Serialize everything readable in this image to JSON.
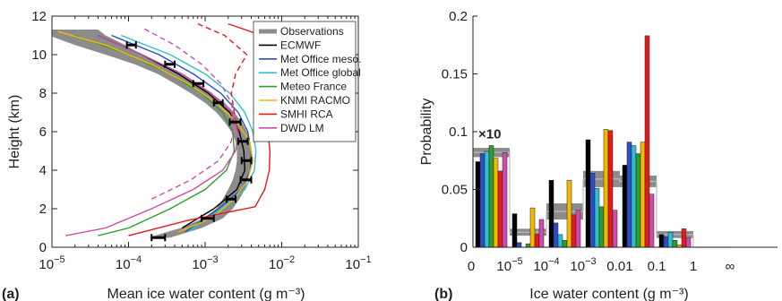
{
  "chart_data": [
    {
      "type": "line",
      "panel_label": "(a)",
      "xlabel": "Mean ice water content (g m⁻³)",
      "ylabel": "Height (km)",
      "xscale": "log",
      "xlim": [
        1e-05,
        0.1
      ],
      "ylim": [
        0,
        12
      ],
      "xticks": [
        {
          "value": 1e-05,
          "base": "10",
          "exp": "−5"
        },
        {
          "value": 0.0001,
          "base": "10",
          "exp": "−4"
        },
        {
          "value": 0.001,
          "base": "10",
          "exp": "−3"
        },
        {
          "value": 0.01,
          "base": "10",
          "exp": "−2"
        },
        {
          "value": 0.1,
          "base": "10",
          "exp": "−1"
        }
      ],
      "yticks": [
        "0",
        "2",
        "4",
        "6",
        "8",
        "10",
        "12"
      ],
      "legend_position": "top-right",
      "observations": {
        "name": "Observations",
        "color": "#8c8c8c",
        "heights": [
          0.5,
          1.0,
          1.5,
          2.0,
          2.5,
          3.0,
          3.5,
          4.0,
          4.5,
          5.0,
          5.5,
          6.0,
          6.5,
          7.0,
          7.5,
          8.0,
          8.5,
          9.0,
          9.5,
          10.0,
          10.5,
          11.0,
          11.3
        ],
        "low": [
          0.00018,
          0.00048,
          0.00095,
          0.0014,
          0.0017,
          0.002,
          0.0023,
          0.0025,
          0.0026,
          0.0026,
          0.0025,
          0.0022,
          0.0018,
          0.0014,
          0.001,
          0.00065,
          0.0004,
          0.00024,
          0.00012,
          5e-05,
          2e-05,
          9e-06,
          8e-06
        ],
        "high": [
          0.00035,
          0.0009,
          0.0017,
          0.0023,
          0.0028,
          0.0033,
          0.0036,
          0.0039,
          0.004,
          0.004,
          0.0038,
          0.0035,
          0.003,
          0.0024,
          0.0018,
          0.0012,
          0.00078,
          0.00048,
          0.00028,
          0.00015,
          9e-05,
          5e-05,
          4e-05
        ]
      },
      "error_bars": {
        "heights": [
          0.5,
          1.5,
          2.5,
          3.5,
          4.5,
          5.5,
          6.5,
          7.5,
          8.5,
          9.5,
          10.5
        ],
        "low": [
          0.0002,
          0.0009,
          0.0019,
          0.0029,
          0.003,
          0.0027,
          0.0021,
          0.0013,
          0.0007,
          0.0003,
          9.5e-05
        ],
        "high": [
          0.0003,
          0.0013,
          0.0025,
          0.004,
          0.004,
          0.0036,
          0.0029,
          0.0017,
          0.00095,
          0.0004,
          0.000125
        ]
      },
      "series": [
        {
          "name": "ECMWF",
          "color": "#000000",
          "dashed": false,
          "points": [
            [
              0.0005,
              1.0
            ],
            [
              0.0013,
              2.0
            ],
            [
              0.0026,
              3.0
            ],
            [
              0.0033,
              4.0
            ],
            [
              0.0032,
              5.0
            ],
            [
              0.0028,
              6.0
            ],
            [
              0.0021,
              7.0
            ],
            [
              0.0011,
              8.0
            ],
            [
              0.00045,
              9.0
            ],
            [
              0.00015,
              10.0
            ],
            [
              4e-05,
              11.0
            ]
          ]
        },
        {
          "name": "Met Office meso.",
          "color": "#2b4ec8",
          "dashed": false,
          "points": [
            [
              0.00055,
              0.8
            ],
            [
              0.0015,
              2.0
            ],
            [
              0.003,
              3.0
            ],
            [
              0.0039,
              4.0
            ],
            [
              0.004,
              5.0
            ],
            [
              0.0036,
              6.0
            ],
            [
              0.0027,
              7.0
            ],
            [
              0.0016,
              8.0
            ],
            [
              0.0007,
              9.0
            ],
            [
              0.00025,
              10.0
            ],
            [
              6e-05,
              11.0
            ]
          ]
        },
        {
          "name": "Met Office global",
          "color": "#2ec0d0",
          "dashed": false,
          "points": [
            [
              0.0006,
              0.8
            ],
            [
              0.0016,
              2.0
            ],
            [
              0.0033,
              3.0
            ],
            [
              0.0044,
              4.0
            ],
            [
              0.0046,
              5.0
            ],
            [
              0.0042,
              6.0
            ],
            [
              0.0033,
              7.0
            ],
            [
              0.0021,
              8.0
            ],
            [
              0.001,
              9.0
            ],
            [
              0.00035,
              10.0
            ],
            [
              8e-05,
              11.0
            ]
          ]
        },
        {
          "name": "Meteo France",
          "color": "#2ca02c",
          "dashed": false,
          "points": [
            [
              4e-05,
              0.6
            ],
            [
              0.0001,
              1.0
            ],
            [
              0.00035,
              2.0
            ],
            [
              0.001,
              3.0
            ],
            [
              0.0019,
              4.0
            ],
            [
              0.0024,
              5.0
            ],
            [
              0.0023,
              6.0
            ],
            [
              0.0017,
              7.0
            ],
            [
              0.0009,
              8.0
            ],
            [
              0.00035,
              9.0
            ],
            [
              0.0001,
              10.0
            ],
            [
              2e-05,
              11.0
            ]
          ]
        },
        {
          "name": "KNMI RACMO",
          "color": "#f5b800",
          "dashed": false,
          "points": [
            [
              0.00045,
              0.8
            ],
            [
              0.0012,
              1.5
            ],
            [
              0.0024,
              2.5
            ],
            [
              0.0036,
              3.5
            ],
            [
              0.0042,
              4.5
            ],
            [
              0.0038,
              5.5
            ],
            [
              0.0026,
              6.5
            ],
            [
              0.0014,
              7.5
            ],
            [
              0.0006,
              8.5
            ],
            [
              0.0002,
              9.5
            ],
            [
              5e-05,
              10.5
            ],
            [
              1.2e-05,
              11.2
            ]
          ]
        },
        {
          "name": "SMHI RCA",
          "color": "#e41a1c",
          "dashed": false,
          "points": [
            [
              0.0001,
              0.6
            ],
            [
              0.0006,
              1.4
            ],
            [
              0.0045,
              2.1
            ],
            [
              0.006,
              3.0
            ],
            [
              0.0069,
              4.0
            ],
            [
              0.007,
              5.0
            ],
            [
              0.0066,
              6.0
            ],
            [
              0.0062,
              7.0
            ],
            [
              0.0064,
              8.0
            ],
            [
              0.0075,
              9.0
            ],
            [
              0.0095,
              10.0
            ],
            [
              0.0055,
              11.0
            ],
            [
              0.002,
              11.6
            ]
          ]
        },
        {
          "name": "DWD LM",
          "color": "#d04ab0",
          "dashed": false,
          "points": [
            [
              1.5e-05,
              0.6
            ],
            [
              5e-05,
              1.0
            ],
            [
              0.0002,
              2.0
            ],
            [
              0.0007,
              3.0
            ],
            [
              0.0017,
              4.0
            ],
            [
              0.0025,
              5.0
            ],
            [
              0.0027,
              6.0
            ],
            [
              0.0022,
              7.0
            ],
            [
              0.0012,
              8.0
            ],
            [
              0.0005,
              9.0
            ],
            [
              0.00015,
              10.0
            ],
            [
              4e-05,
              11.0
            ]
          ]
        },
        {
          "name": "",
          "color": "#e41a1c",
          "dashed": true,
          "points": [
            [
              0.0027,
              6.0
            ],
            [
              0.0024,
              7.0
            ],
            [
              0.0022,
              8.0
            ],
            [
              0.0025,
              9.0
            ],
            [
              0.0035,
              10.0
            ],
            [
              0.0018,
              11.0
            ],
            [
              0.0008,
              11.6
            ]
          ]
        },
        {
          "name": "",
          "color": "#d04ab0",
          "dashed": true,
          "points": [
            [
              0.0002,
              2.5
            ],
            [
              0.00065,
              3.5
            ],
            [
              0.0015,
              4.5
            ],
            [
              0.0022,
              5.5
            ],
            [
              0.0024,
              6.5
            ],
            [
              0.0022,
              7.5
            ],
            [
              0.0016,
              8.5
            ],
            [
              0.0009,
              9.5
            ],
            [
              0.0004,
              10.5
            ],
            [
              0.00015,
              11.4
            ]
          ]
        }
      ]
    },
    {
      "type": "bar",
      "panel_label": "(b)",
      "xlabel": "Ice water content (g m⁻³)",
      "ylabel": "Probability",
      "ylim": [
        0,
        0.2
      ],
      "yticks": [
        "0",
        "0.05",
        "0.1",
        "0.15",
        "0.2"
      ],
      "multiplier_label": "×10",
      "bin_edge_labels": [
        {
          "text": "0"
        },
        {
          "base": "10",
          "exp": "−5"
        },
        {
          "base": "10",
          "exp": "−4"
        },
        {
          "base": "10",
          "exp": "−3"
        },
        {
          "text": "0.01"
        },
        {
          "text": "0.1"
        },
        {
          "text": "1"
        },
        {
          "text": "∞"
        }
      ],
      "observations": {
        "name": "Observations",
        "color": "#8c8c8c",
        "bins": [
          {
            "low": 0.078,
            "high": 0.086
          },
          {
            "low": 0.01,
            "high": 0.016
          },
          {
            "low": 0.024,
            "high": 0.038
          },
          {
            "low": 0.052,
            "high": 0.066
          },
          {
            "low": 0.052,
            "high": 0.062
          },
          {
            "low": 0.008,
            "high": 0.014
          },
          {
            "low": 0.0,
            "high": 0.0
          }
        ]
      },
      "series": [
        {
          "name": "ECMWF",
          "color": "#000000",
          "values": [
            0.074,
            0.029,
            0.058,
            0.093,
            0.071,
            0.011
          ]
        },
        {
          "name": "Met Office meso.",
          "color": "#2b4ec8",
          "values": [
            0.081,
            0.004,
            0.021,
            0.064,
            0.091,
            0.009
          ]
        },
        {
          "name": "Met Office global",
          "color": "#2ec0d0",
          "values": [
            0.083,
            0.0,
            0.011,
            0.051,
            0.088,
            0.013
          ]
        },
        {
          "name": "Meteo France",
          "color": "#2ca02c",
          "values": [
            0.088,
            0.003,
            0.006,
            0.035,
            0.081,
            0.006
          ]
        },
        {
          "name": "KNMI RACMO",
          "color": "#f5b800",
          "values": [
            0.077,
            0.034,
            0.058,
            0.102,
            0.091,
            0.002
          ]
        },
        {
          "name": "SMHI RCA",
          "color": "#e41a1c",
          "values": [
            0.066,
            0.011,
            0.028,
            0.101,
            0.183,
            0.016
          ]
        },
        {
          "name": "DWD LM",
          "color": "#d04ab0",
          "values": [
            0.082,
            0.024,
            0.032,
            0.032,
            0.046,
            0.008
          ]
        }
      ]
    }
  ]
}
